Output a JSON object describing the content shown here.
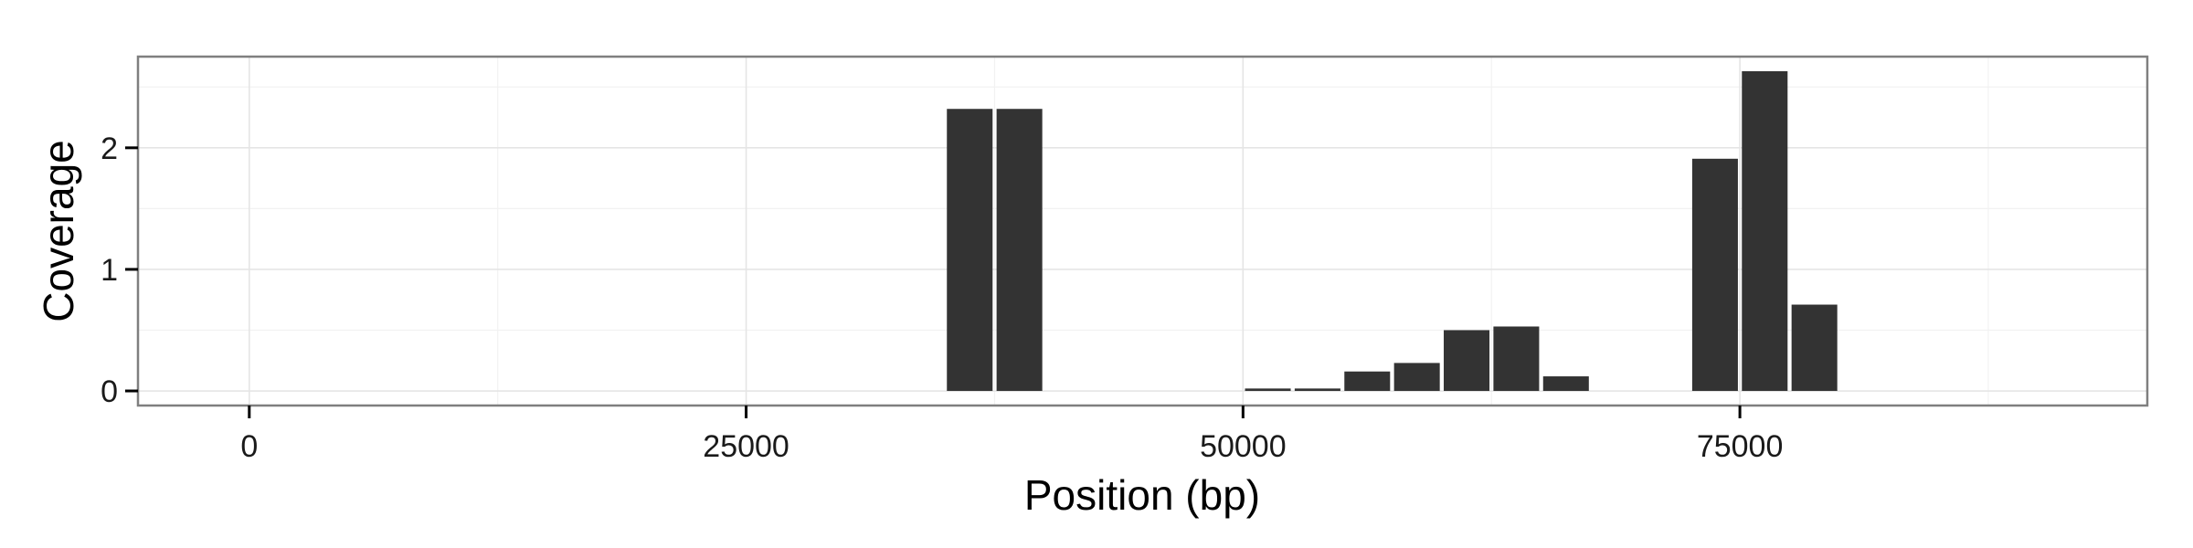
{
  "chart_data": {
    "type": "bar",
    "title": "",
    "xlabel": "Position (bp)",
    "ylabel": "Coverage",
    "xlim": [
      -5600,
      95500
    ],
    "ylim": [
      -0.12,
      2.75
    ],
    "x_ticks": [
      0,
      25000,
      50000,
      75000
    ],
    "x_tick_labels": [
      "0",
      "25000",
      "50000",
      "75000"
    ],
    "y_ticks": [
      0,
      1,
      2
    ],
    "y_tick_labels": [
      "0",
      "1",
      "2"
    ],
    "grid": true,
    "bar_width": 2300,
    "bars": [
      {
        "x": 36250,
        "y": 2.32
      },
      {
        "x": 38750,
        "y": 2.32
      },
      {
        "x": 51250,
        "y": 0.02
      },
      {
        "x": 53750,
        "y": 0.02
      },
      {
        "x": 56250,
        "y": 0.16
      },
      {
        "x": 58750,
        "y": 0.23
      },
      {
        "x": 61250,
        "y": 0.5
      },
      {
        "x": 63750,
        "y": 0.53
      },
      {
        "x": 66250,
        "y": 0.12
      },
      {
        "x": 73750,
        "y": 1.91
      },
      {
        "x": 76250,
        "y": 2.63
      },
      {
        "x": 78750,
        "y": 0.71
      }
    ],
    "colors": {
      "bar": "#333333",
      "panel_border": "#7f7f7f",
      "grid_major": "#e5e5e5",
      "grid_minor": "#f2f2f2"
    }
  }
}
